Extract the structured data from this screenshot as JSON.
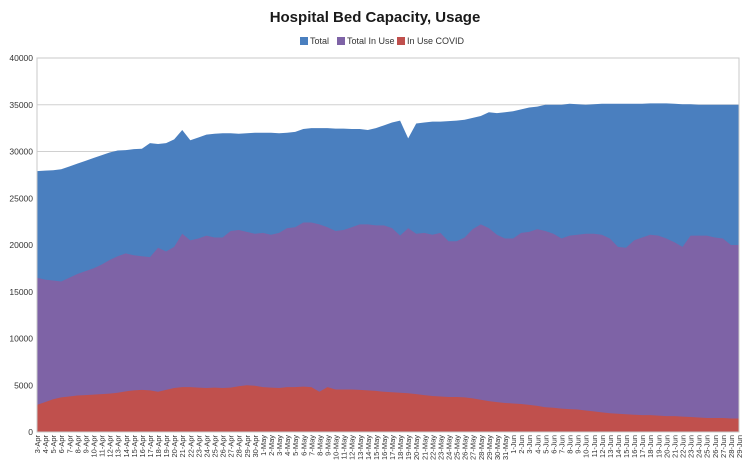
{
  "chart_data": {
    "type": "area",
    "title": "Hospital Bed Capacity, Usage",
    "xlabel": "",
    "ylabel": "",
    "ylim": [
      0,
      40000
    ],
    "yticks": [
      0,
      5000,
      10000,
      15000,
      20000,
      25000,
      30000,
      35000,
      40000
    ],
    "grid": true,
    "legend_position": "top",
    "categories": [
      "3-Apr",
      "4-Apr",
      "5-Apr",
      "6-Apr",
      "7-Apr",
      "8-Apr",
      "9-Apr",
      "10-Apr",
      "11-Apr",
      "12-Apr",
      "13-Apr",
      "14-Apr",
      "15-Apr",
      "16-Apr",
      "17-Apr",
      "18-Apr",
      "19-Apr",
      "20-Apr",
      "21-Apr",
      "22-Apr",
      "23-Apr",
      "24-Apr",
      "25-Apr",
      "26-Apr",
      "27-Apr",
      "28-Apr",
      "29-Apr",
      "30-Apr",
      "1-May",
      "2-May",
      "3-May",
      "4-May",
      "5-May",
      "6-May",
      "7-May",
      "8-May",
      "9-May",
      "10-May",
      "11-May",
      "12-May",
      "13-May",
      "14-May",
      "15-May",
      "16-May",
      "17-May",
      "18-May",
      "19-May",
      "20-May",
      "21-May",
      "22-May",
      "23-May",
      "24-May",
      "25-May",
      "26-May",
      "27-May",
      "28-May",
      "29-May",
      "30-May",
      "31-May",
      "1-Jun",
      "2-Jun",
      "3-Jun",
      "4-Jun",
      "5-Jun",
      "6-Jun",
      "7-Jun",
      "8-Jun",
      "9-Jun",
      "10-Jun",
      "11-Jun",
      "12-Jun",
      "13-Jun",
      "14-Jun",
      "15-Jun",
      "16-Jun",
      "17-Jun",
      "18-Jun",
      "19-Jun",
      "20-Jun",
      "21-Jun",
      "22-Jun",
      "23-Jun",
      "24-Jun",
      "25-Jun",
      "26-Jun",
      "27-Jun",
      "28-Jun",
      "29-Jun"
    ],
    "series": [
      {
        "name": "Total",
        "color": "#4a7fbf",
        "values": [
          27900,
          27950,
          28000,
          28100,
          28400,
          28700,
          29000,
          29300,
          29600,
          29900,
          30100,
          30150,
          30250,
          30300,
          30900,
          30800,
          30900,
          31300,
          32300,
          31200,
          31500,
          31800,
          31900,
          31950,
          31950,
          31900,
          31950,
          32000,
          32000,
          32000,
          31950,
          32000,
          32100,
          32400,
          32500,
          32500,
          32500,
          32450,
          32450,
          32400,
          32400,
          32300,
          32500,
          32800,
          33100,
          33300,
          31400,
          33000,
          33100,
          33200,
          33200,
          33250,
          33300,
          33400,
          33600,
          33800,
          34200,
          34100,
          34200,
          34300,
          34500,
          34700,
          34800,
          35000,
          35000,
          35000,
          35100,
          35050,
          35000,
          35050,
          35100,
          35100,
          35100,
          35100,
          35100,
          35100,
          35150,
          35150,
          35150,
          35100,
          35050,
          35050,
          35000,
          35000,
          35000,
          35000,
          35000,
          35000
        ]
      },
      {
        "name": "Total In Use",
        "color": "#7e63a6",
        "values": [
          16500,
          16300,
          16200,
          16100,
          16500,
          16900,
          17200,
          17500,
          17900,
          18400,
          18800,
          19100,
          18900,
          18800,
          18700,
          19700,
          19300,
          19800,
          21200,
          20500,
          20700,
          21000,
          20800,
          20800,
          21500,
          21600,
          21400,
          21200,
          21300,
          21100,
          21300,
          21800,
          21900,
          22400,
          22400,
          22200,
          21900,
          21500,
          21600,
          21900,
          22200,
          22200,
          22100,
          22100,
          21800,
          21000,
          21800,
          21200,
          21300,
          21100,
          21300,
          20400,
          20400,
          20800,
          21700,
          22200,
          21800,
          21100,
          20700,
          20700,
          21300,
          21400,
          21700,
          21500,
          21200,
          20700,
          21000,
          21100,
          21200,
          21200,
          21100,
          20700,
          19800,
          19700,
          20500,
          20800,
          21100,
          21000,
          20700,
          20300,
          19800,
          21000,
          21000,
          21000,
          20800,
          20700,
          20000,
          20000
        ]
      },
      {
        "name": "In Use COVID",
        "color": "#c0504d",
        "values": [
          2900,
          3200,
          3500,
          3700,
          3800,
          3900,
          3950,
          4000,
          4050,
          4100,
          4200,
          4350,
          4450,
          4500,
          4450,
          4300,
          4500,
          4700,
          4800,
          4800,
          4750,
          4700,
          4750,
          4700,
          4750,
          4900,
          5000,
          4950,
          4800,
          4750,
          4700,
          4800,
          4800,
          4850,
          4800,
          4300,
          4800,
          4550,
          4550,
          4550,
          4500,
          4450,
          4400,
          4300,
          4250,
          4200,
          4150,
          4050,
          3950,
          3850,
          3800,
          3750,
          3750,
          3700,
          3600,
          3450,
          3300,
          3200,
          3100,
          3050,
          3000,
          2900,
          2800,
          2650,
          2600,
          2500,
          2450,
          2400,
          2300,
          2200,
          2100,
          2000,
          1950,
          1900,
          1850,
          1800,
          1800,
          1750,
          1700,
          1700,
          1650,
          1600,
          1550,
          1500,
          1500,
          1500,
          1450,
          1450
        ]
      }
    ]
  }
}
